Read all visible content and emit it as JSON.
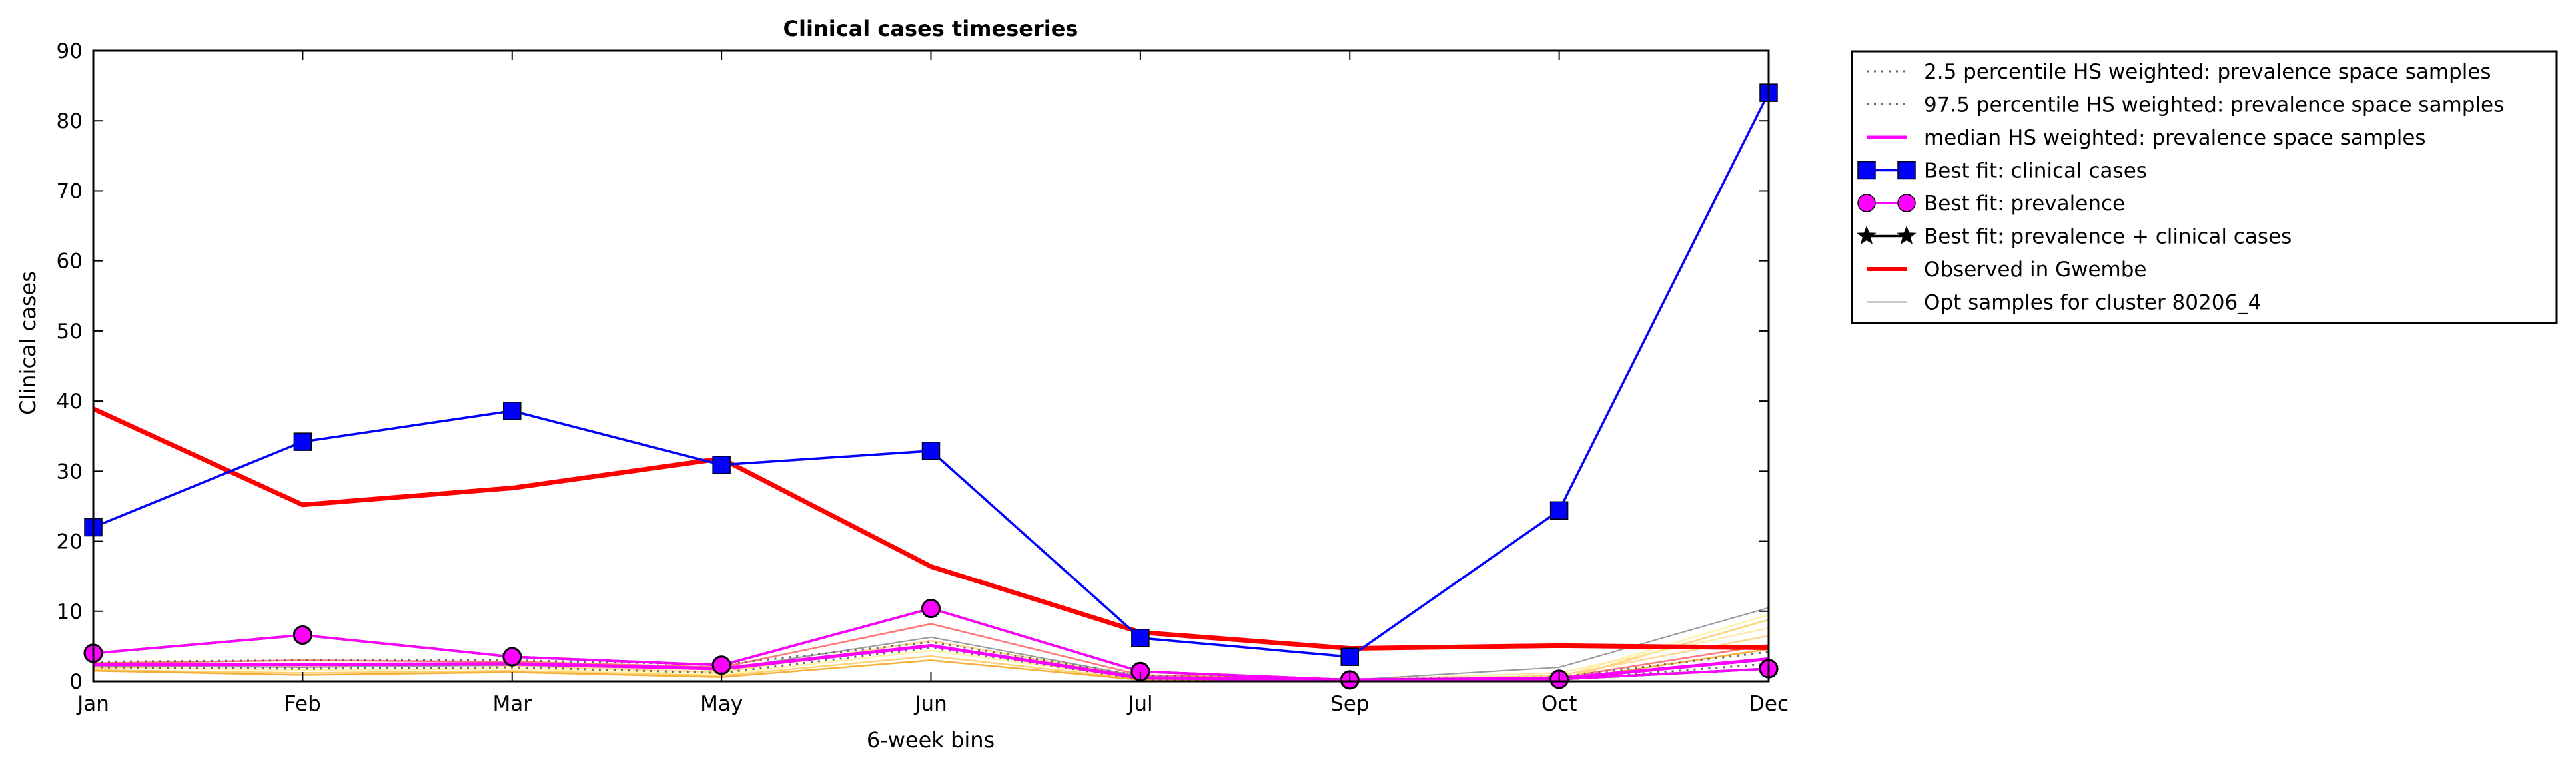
{
  "chart_data": {
    "type": "line",
    "title": "Clinical cases timeseries",
    "xlabel": "6-week bins",
    "ylabel": "Clinical cases",
    "categories": [
      "Jan",
      "Feb",
      "Mar",
      "May",
      "Jun",
      "Jul",
      "Sep",
      "Oct",
      "Dec"
    ],
    "ylim": [
      0,
      90
    ],
    "yticks": [
      0,
      10,
      20,
      30,
      40,
      50,
      60,
      70,
      80,
      90
    ],
    "grid": false,
    "legend_position": "outside-top-right",
    "series": [
      {
        "name": "2.5 percentile HS weighted: prevalence space samples",
        "style": "dotted",
        "color": "#666666",
        "values": [
          2.0,
          1.8,
          2.0,
          1.2,
          4.8,
          0.3,
          0.1,
          0.2,
          2.5
        ]
      },
      {
        "name": "97.5 percentile HS weighted: prevalence space samples",
        "style": "dotted",
        "color": "#666666",
        "values": [
          2.8,
          3.0,
          3.0,
          2.4,
          5.6,
          0.8,
          0.3,
          0.6,
          4.2
        ]
      },
      {
        "name": "median HS weighted: prevalence space samples",
        "style": "solid",
        "color": "#ff00ff",
        "values": [
          2.4,
          2.4,
          2.5,
          1.8,
          5.1,
          0.5,
          0.2,
          0.4,
          3.2
        ]
      },
      {
        "name": "Best fit: clinical cases",
        "style": "solid",
        "color": "#0000ff",
        "marker": "square",
        "values": [
          22,
          34.2,
          38.6,
          30.9,
          32.9,
          6.2,
          3.5,
          24.4,
          84
        ]
      },
      {
        "name": "Best fit: prevalence",
        "style": "solid",
        "color": "#ff00ff",
        "marker": "circle",
        "values": [
          4.0,
          6.6,
          3.5,
          2.3,
          10.4,
          1.4,
          0.2,
          0.3,
          1.8
        ]
      },
      {
        "name": "Best fit: prevalence + clinical cases",
        "style": "solid",
        "color": "#000000",
        "marker": "star",
        "values": [
          4.0,
          6.6,
          3.5,
          2.3,
          10.4,
          1.4,
          0.2,
          0.3,
          1.8
        ]
      },
      {
        "name": "Observed in Gwembe",
        "style": "solid",
        "color": "#ff0000",
        "values": [
          38.9,
          25.2,
          27.6,
          31.8,
          16.4,
          7.0,
          4.7,
          5.1,
          4.8
        ]
      },
      {
        "name": "Opt samples for cluster 80206_4",
        "style": "solid",
        "color": "#999999",
        "values": [
          2.2,
          2.0,
          2.3,
          1.7,
          6.3,
          0.7,
          0.2,
          2.0,
          10.5
        ]
      }
    ],
    "sample_lines": [
      {
        "color": "#ff6666",
        "values": [
          2.6,
          3.0,
          2.8,
          2.0,
          8.2,
          0.9,
          0.3,
          0.5,
          5.2
        ]
      },
      {
        "color": "#ffcc66",
        "values": [
          1.6,
          1.2,
          1.5,
          0.8,
          3.6,
          0.3,
          0.1,
          0.2,
          8.8
        ]
      },
      {
        "color": "#fff29a",
        "values": [
          2.0,
          1.6,
          1.8,
          1.0,
          4.4,
          0.4,
          0.2,
          0.6,
          9.5
        ]
      },
      {
        "color": "#ffd27f",
        "values": [
          1.9,
          2.4,
          2.2,
          1.3,
          5.8,
          0.6,
          0.2,
          0.8,
          6.5
        ]
      },
      {
        "color": "#f5a623",
        "values": [
          1.5,
          0.9,
          1.3,
          0.6,
          3.0,
          0.2,
          0.1,
          0.1,
          4.6
        ]
      },
      {
        "color": "#ffe9a0",
        "values": [
          2.3,
          2.2,
          2.4,
          1.6,
          5.0,
          0.5,
          0.2,
          1.2,
          7.6
        ]
      }
    ]
  }
}
